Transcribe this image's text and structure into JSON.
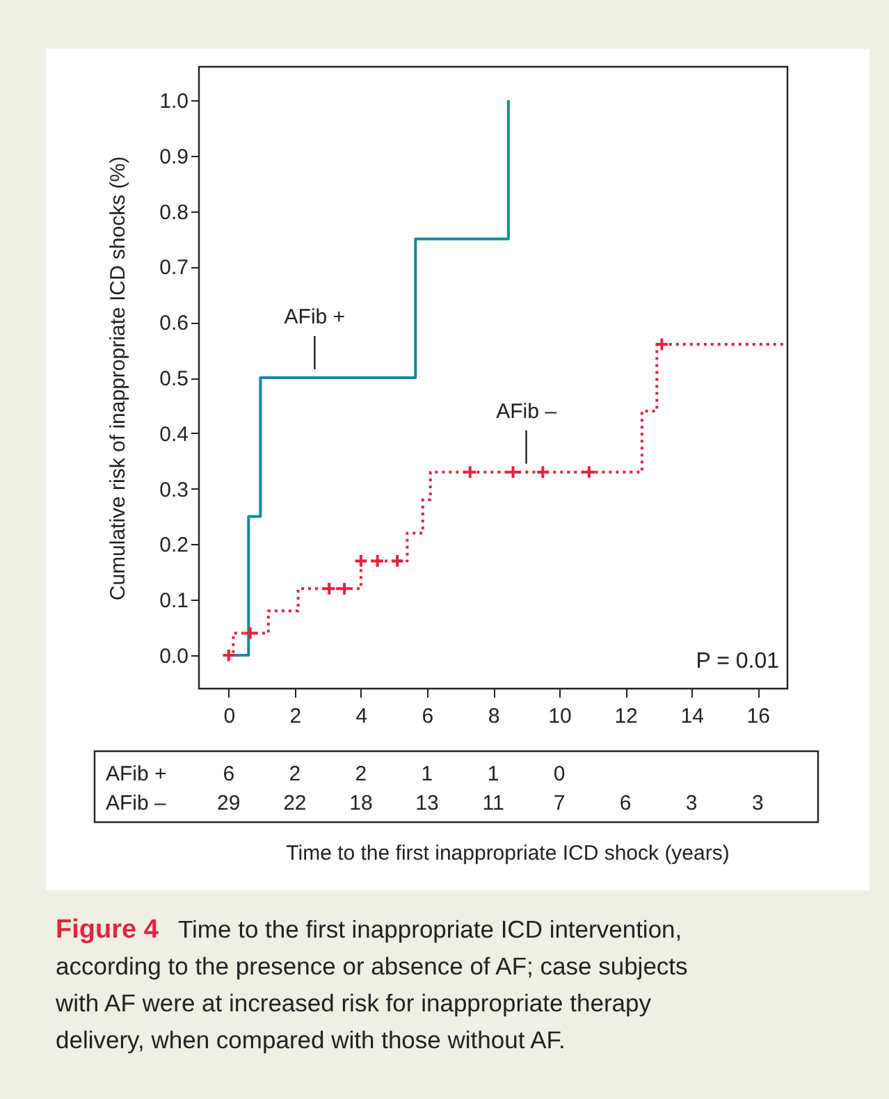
{
  "chart_data": {
    "type": "step",
    "ylabel": "Cumulative risk of inappropriate ICD shocks (%)",
    "xlim": [
      -0.9,
      16.9
    ],
    "xticks": [
      0,
      2,
      4,
      6,
      8,
      10,
      12,
      14,
      16
    ],
    "ylim": [
      -0.06,
      1.06
    ],
    "yticks": [
      {
        "value": 0,
        "label": "0.0"
      },
      0.1,
      0.2,
      0.3,
      0.4,
      0.5,
      0.6,
      0.7,
      0.8,
      0.9,
      {
        "value": 1,
        "label": "1.0"
      }
    ],
    "grid": false,
    "series": [
      {
        "type": "step",
        "color": "#17899a",
        "line_style": "solid",
        "x": [
          0,
          0.6,
          0.96,
          5.65,
          8.46
        ],
        "values": [
          0,
          0.25,
          0.5,
          0.75,
          1.0
        ]
      },
      {
        "type": "step",
        "color": "#e3243f",
        "line_style": "dotted",
        "x": [
          0,
          0.14,
          1.2,
          2.1,
          4.0,
          5.4,
          5.87,
          6.1,
          12.5,
          12.95,
          16.9
        ],
        "values": [
          0,
          0.04,
          0.08,
          0.12,
          0.17,
          0.22,
          0.28,
          0.33,
          0.44,
          0.56,
          0.56
        ]
      },
      {
        "type": "scatter",
        "color": "#e3243f",
        "marker": "cross",
        "x": [
          0,
          0.65,
          3.04,
          3.5,
          4.0,
          4.5,
          5.1,
          7.3,
          8.6,
          9.5,
          10.9,
          13.1
        ],
        "values": [
          0,
          0.04,
          0.12,
          0.12,
          0.17,
          0.17,
          0.17,
          0.33,
          0.33,
          0.33,
          0.33,
          0.56
        ]
      }
    ],
    "annotations": [
      {
        "text": "AFib +",
        "x": 2.6,
        "y": 0.5
      },
      {
        "text": "AFib –",
        "x": 9.0,
        "y": 0.33
      },
      "P = 0.01",
      "AFib +",
      "6 2 2 1 1 0",
      "AFib –",
      "29 22 18 13 11 7 6 3 3",
      "Time to the first inappropriate ICD shock (years)",
      "Figure 4",
      "Time to the first inappropriate ICD intervention, according to the presence or absence of AF; case subjects with AF were at increased risk for inappropriate therapy delivery, when compared with those without AF."
    ]
  }
}
